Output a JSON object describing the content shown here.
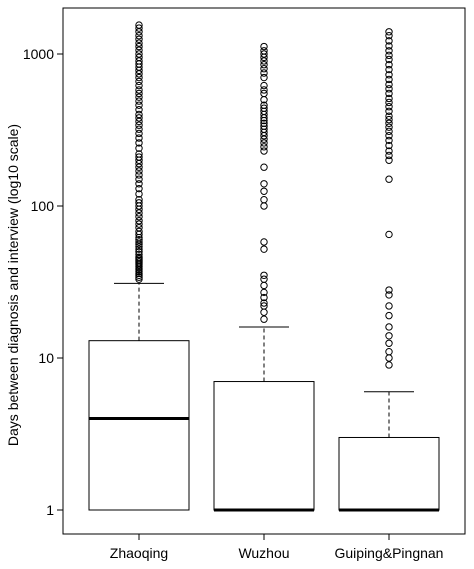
{
  "chart_data": {
    "type": "box",
    "scale": "log10",
    "ylabel": "Days between diagnosis and interview (log10 scale)",
    "xlabel": "",
    "ylim": [
      0.85,
      2200
    ],
    "yticks": [
      {
        "value": 1,
        "label": "1"
      },
      {
        "value": 10,
        "label": "10"
      },
      {
        "value": 100,
        "label": "100"
      },
      {
        "value": 1000,
        "label": "1000"
      }
    ],
    "categories": [
      "Zhaoqing",
      "Wuzhou",
      "Guiping&Pingnan"
    ],
    "boxes": [
      {
        "category": "Zhaoqing",
        "lower_whisker": 1,
        "q1": 1,
        "median": 4,
        "q3": 13,
        "upper_whisker": 31,
        "outliers": [
          33,
          34,
          35,
          36,
          37,
          38,
          39,
          40,
          41,
          42,
          43,
          44,
          45,
          46,
          48,
          50,
          52,
          54,
          56,
          58,
          60,
          62,
          65,
          68,
          72,
          76,
          80,
          85,
          90,
          95,
          100,
          105,
          110,
          120,
          130,
          140,
          150,
          160,
          170,
          180,
          190,
          200,
          210,
          220,
          240,
          260,
          280,
          300,
          320,
          340,
          360,
          380,
          400,
          430,
          460,
          490,
          520,
          550,
          580,
          620,
          660,
          700,
          740,
          780,
          820,
          860,
          900,
          950,
          1000,
          1060,
          1120,
          1180,
          1250,
          1320,
          1400,
          1480,
          1550
        ]
      },
      {
        "category": "Wuzhou",
        "lower_whisker": 1,
        "q1": 1,
        "median": 1,
        "q3": 7,
        "upper_whisker": 16,
        "outliers": [
          18,
          20,
          22,
          23,
          25,
          27,
          30,
          33,
          35,
          52,
          58,
          100,
          110,
          125,
          140,
          180,
          230,
          245,
          260,
          275,
          290,
          305,
          320,
          335,
          350,
          365,
          380,
          400,
          420,
          440,
          460,
          500,
          550,
          580,
          620,
          700,
          750,
          800,
          850,
          900,
          950,
          1000,
          1050,
          1120
        ]
      },
      {
        "category": "Guiping&Pingnan",
        "lower_whisker": 1,
        "q1": 1,
        "median": 1,
        "q3": 3,
        "upper_whisker": 6,
        "outliers": [
          9,
          10,
          11,
          12.5,
          14,
          16,
          19,
          22,
          26,
          28,
          65,
          150,
          200,
          215,
          230,
          250,
          270,
          290,
          310,
          330,
          350,
          370,
          390,
          420,
          450,
          480,
          510,
          550,
          590,
          630,
          680,
          730,
          790,
          850,
          920,
          980,
          1050,
          1130,
          1220,
          1320,
          1400
        ]
      }
    ]
  }
}
